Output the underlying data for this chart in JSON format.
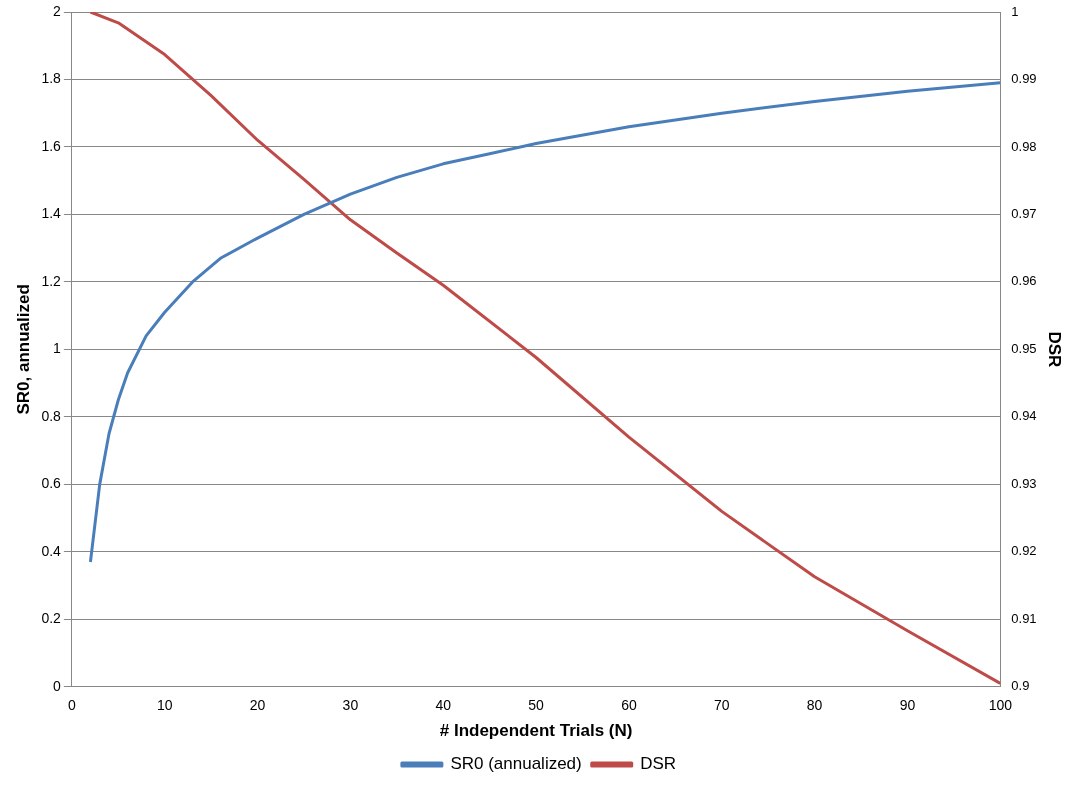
{
  "chart_data": {
    "type": "line",
    "xlabel": "# Independent Trials (N)",
    "ylabel": "SR0, annualized",
    "y2label": "DSR",
    "xlim": [
      0,
      100
    ],
    "xticks": [
      0,
      10,
      20,
      30,
      40,
      50,
      60,
      70,
      80,
      90,
      100
    ],
    "ylim": [
      0,
      2
    ],
    "yticks": [
      0,
      0.2,
      0.4,
      0.6,
      0.8,
      1,
      1.2,
      1.4,
      1.6,
      1.8,
      2
    ],
    "y2lim": [
      0.9,
      1
    ],
    "y2ticks": [
      0.9,
      0.91,
      0.92,
      0.93,
      0.94,
      0.95,
      0.96,
      0.97,
      0.98,
      0.99,
      1
    ],
    "grid": "y",
    "legend": "bottom",
    "marker": "none",
    "line_style": "solid",
    "series": [
      {
        "name": "SR0 (annualized)",
        "color": "#4a7ebb",
        "x": [
          2,
          3,
          4,
          5,
          6,
          8,
          10,
          13,
          16,
          20,
          25,
          30,
          35,
          40,
          45,
          50,
          60,
          70,
          80,
          90,
          100
        ],
        "values": [
          0.37,
          0.6,
          0.75,
          0.85,
          0.93,
          1.04,
          1.11,
          1.2,
          1.27,
          1.33,
          1.4,
          1.46,
          1.51,
          1.55,
          1.58,
          1.61,
          1.66,
          1.7,
          1.735,
          1.765,
          1.79
        ]
      },
      {
        "name": "DSR",
        "color": "#be4b48",
        "axis": "y2",
        "x": [
          2,
          5,
          10,
          15,
          20,
          25,
          30,
          35,
          40,
          50,
          60,
          70,
          80,
          90,
          100
        ],
        "values": [
          1,
          0.9984,
          0.9937,
          0.9876,
          0.981,
          0.9752,
          0.9692,
          0.9643,
          0.9595,
          0.9488,
          0.937,
          0.926,
          0.9163,
          0.9083,
          0.9005
        ]
      }
    ]
  }
}
